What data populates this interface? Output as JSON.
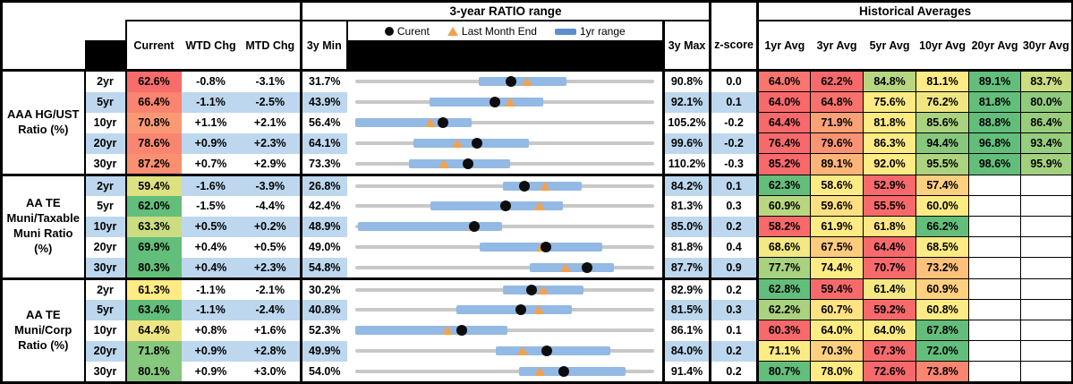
{
  "meta": {
    "ratio_range_title": "3-year RATIO range",
    "historical_title": "Historical Averages"
  },
  "columns": {
    "current": "Current",
    "wtd": "WTD Chg",
    "mtd": "MTD Chg",
    "min3y": "3y Min",
    "max3y": "3y Max",
    "zscore": "z-score",
    "avgs": [
      "1yr Avg",
      "3yr Avg",
      "5yr Avg",
      "10yr Avg",
      "20yr Avg",
      "30yr Avg"
    ]
  },
  "legend": {
    "current": "Curent",
    "last_month": "Last Month End",
    "range": "1yr range"
  },
  "colors": {
    "scale_min": "#F8696B",
    "scale_mid": "#FFEB84",
    "scale_max": "#63BE7B",
    "zebra": "#BDD7EE",
    "range_bar": "#93B9E5",
    "legend_bar": "#5D8FCE",
    "track": "#C8C8C8",
    "dot": "#0d0d0d",
    "triangle": "#F2A14F"
  },
  "groups": [
    {
      "label": "AAA HG/UST\nRatio (%)",
      "rows": [
        {
          "term": "2yr",
          "current": 62.6,
          "wtd": "-0.8%",
          "mtd": "-3.1%",
          "min": 31.7,
          "max": 90.8,
          "z": "0.0",
          "avgs": [
            64.0,
            62.2,
            84.8,
            81.1,
            89.1,
            83.7
          ],
          "range1yr": [
            56.2,
            73.4
          ],
          "last_month": 65.7
        },
        {
          "term": "5yr",
          "current": 66.4,
          "wtd": "-1.1%",
          "mtd": "-2.5%",
          "min": 43.9,
          "max": 92.1,
          "z": "0.1",
          "avgs": [
            64.0,
            64.8,
            75.6,
            76.2,
            81.8,
            80.0
          ],
          "range1yr": [
            56.0,
            74.3
          ],
          "last_month": 68.9
        },
        {
          "term": "10yr",
          "current": 70.8,
          "wtd": "+1.1%",
          "mtd": "+2.1%",
          "min": 56.4,
          "max": 105.2,
          "z": "-0.2",
          "avgs": [
            64.4,
            71.9,
            81.8,
            85.6,
            88.8,
            86.4
          ],
          "range1yr": [
            56.4,
            75.5
          ],
          "last_month": 68.7
        },
        {
          "term": "20yr",
          "current": 78.6,
          "wtd": "+0.9%",
          "mtd": "+2.3%",
          "min": 64.1,
          "max": 99.6,
          "z": "-0.2",
          "avgs": [
            76.4,
            79.6,
            86.3,
            94.4,
            96.8,
            93.4
          ],
          "range1yr": [
            71.1,
            84.7
          ],
          "last_month": 76.3
        },
        {
          "term": "30yr",
          "current": 87.2,
          "wtd": "+0.7%",
          "mtd": "+2.9%",
          "min": 73.3,
          "max": 110.2,
          "z": "-0.3",
          "avgs": [
            85.2,
            89.1,
            92.0,
            95.5,
            98.6,
            95.9
          ],
          "range1yr": [
            80.0,
            92.4
          ],
          "last_month": 84.3
        }
      ]
    },
    {
      "label": "AA TE\nMuni/Taxable\nMuni Ratio\n(%)",
      "rows": [
        {
          "term": "2yr",
          "current": 59.4,
          "wtd": "-1.6%",
          "mtd": "-3.9%",
          "min": 26.8,
          "max": 84.2,
          "z": "0.1",
          "avgs": [
            62.3,
            58.6,
            52.9,
            57.4,
            null,
            null
          ],
          "range1yr": [
            55.2,
            70.3
          ],
          "last_month": 63.3
        },
        {
          "term": "5yr",
          "current": 62.0,
          "wtd": "-1.5%",
          "mtd": "-4.4%",
          "min": 42.4,
          "max": 81.3,
          "z": "0.3",
          "avgs": [
            60.9,
            59.6,
            55.5,
            60.0,
            null,
            null
          ],
          "range1yr": [
            52.2,
            69.4
          ],
          "last_month": 66.4
        },
        {
          "term": "10yr",
          "current": 63.3,
          "wtd": "+0.5%",
          "mtd": "+0.2%",
          "min": 48.9,
          "max": 85.0,
          "z": "0.2",
          "avgs": [
            58.2,
            61.9,
            61.8,
            66.2,
            null,
            null
          ],
          "range1yr": [
            49.3,
            66.6
          ],
          "last_month": 63.1
        },
        {
          "term": "20yr",
          "current": 69.9,
          "wtd": "+0.4%",
          "mtd": "+0.5%",
          "min": 49.0,
          "max": 81.8,
          "z": "0.4",
          "avgs": [
            68.6,
            67.5,
            64.4,
            68.5,
            null,
            null
          ],
          "range1yr": [
            62.7,
            76.1
          ],
          "last_month": 69.4
        },
        {
          "term": "30yr",
          "current": 80.3,
          "wtd": "+0.4%",
          "mtd": "+2.3%",
          "min": 54.8,
          "max": 87.7,
          "z": "0.9",
          "avgs": [
            77.7,
            74.4,
            70.7,
            73.2,
            null,
            null
          ],
          "range1yr": [
            74.0,
            83.3
          ],
          "last_month": 78.0
        }
      ]
    },
    {
      "label": "AA TE\nMuni/Corp\nRatio (%)",
      "rows": [
        {
          "term": "2yr",
          "current": 61.3,
          "wtd": "-1.1%",
          "mtd": "-2.1%",
          "min": 30.2,
          "max": 82.9,
          "z": "0.2",
          "avgs": [
            62.8,
            59.4,
            61.4,
            60.9,
            null,
            null
          ],
          "range1yr": [
            56.3,
            70.5
          ],
          "last_month": 63.4
        },
        {
          "term": "5yr",
          "current": 63.4,
          "wtd": "-1.1%",
          "mtd": "-2.4%",
          "min": 40.8,
          "max": 81.5,
          "z": "0.3",
          "avgs": [
            62.2,
            60.7,
            59.2,
            60.8,
            null,
            null
          ],
          "range1yr": [
            54.6,
            70.3
          ],
          "last_month": 65.8
        },
        {
          "term": "10yr",
          "current": 64.4,
          "wtd": "+0.8%",
          "mtd": "+1.6%",
          "min": 52.3,
          "max": 86.1,
          "z": "0.1",
          "avgs": [
            60.3,
            64.0,
            64.0,
            67.8,
            null,
            null
          ],
          "range1yr": [
            52.3,
            69.5
          ],
          "last_month": 62.8
        },
        {
          "term": "20yr",
          "current": 71.8,
          "wtd": "+0.9%",
          "mtd": "+2.8%",
          "min": 49.9,
          "max": 84.0,
          "z": "0.2",
          "avgs": [
            71.1,
            70.3,
            67.3,
            72.0,
            null,
            null
          ],
          "range1yr": [
            66.0,
            79.0
          ],
          "last_month": 69.0
        },
        {
          "term": "30yr",
          "current": 80.1,
          "wtd": "+0.9%",
          "mtd": "+3.0%",
          "min": 54.0,
          "max": 91.4,
          "z": "0.2",
          "avgs": [
            80.7,
            78.0,
            72.6,
            73.8,
            null,
            null
          ],
          "range1yr": [
            74.5,
            87.8
          ],
          "last_month": 77.1
        }
      ]
    }
  ],
  "chart_data": {
    "type": "table",
    "title": "Muni ratio dashboard with embedded 3-year RATIO range bullet chart",
    "embedded_chart": {
      "type": "range-bullet",
      "title": "3-year RATIO range",
      "legend": [
        "Curent",
        "Last Month End",
        "1yr range"
      ],
      "x_domain_per_row": [
        "3y Min",
        "3y Max"
      ]
    },
    "row_fields": [
      "group",
      "term",
      "current",
      "wtd_chg",
      "mtd_chg",
      "min_3y",
      "max_3y",
      "z_score",
      "avg_1yr",
      "avg_3yr",
      "avg_5yr",
      "avg_10yr",
      "avg_20yr",
      "avg_30yr",
      "range_1yr_lo",
      "range_1yr_hi",
      "last_month_end"
    ],
    "rows": [
      [
        "AAA HG/UST Ratio (%)",
        "2yr",
        62.6,
        "-0.8%",
        "-3.1%",
        31.7,
        90.8,
        0.0,
        64.0,
        62.2,
        84.8,
        81.1,
        89.1,
        83.7,
        56.2,
        73.4,
        65.7
      ],
      [
        "AAA HG/UST Ratio (%)",
        "5yr",
        66.4,
        "-1.1%",
        "-2.5%",
        43.9,
        92.1,
        0.1,
        64.0,
        64.8,
        75.6,
        76.2,
        81.8,
        80.0,
        56.0,
        74.3,
        68.9
      ],
      [
        "AAA HG/UST Ratio (%)",
        "10yr",
        70.8,
        "+1.1%",
        "+2.1%",
        56.4,
        105.2,
        -0.2,
        64.4,
        71.9,
        81.8,
        85.6,
        88.8,
        86.4,
        56.4,
        75.5,
        68.7
      ],
      [
        "AAA HG/UST Ratio (%)",
        "20yr",
        78.6,
        "+0.9%",
        "+2.3%",
        64.1,
        99.6,
        -0.2,
        76.4,
        79.6,
        86.3,
        94.4,
        96.8,
        93.4,
        71.1,
        84.7,
        76.3
      ],
      [
        "AAA HG/UST Ratio (%)",
        "30yr",
        87.2,
        "+0.7%",
        "+2.9%",
        73.3,
        110.2,
        -0.3,
        85.2,
        89.1,
        92.0,
        95.5,
        98.6,
        95.9,
        80.0,
        92.4,
        84.3
      ],
      [
        "AA TE Muni/Taxable Muni Ratio (%)",
        "2yr",
        59.4,
        "-1.6%",
        "-3.9%",
        26.8,
        84.2,
        0.1,
        62.3,
        58.6,
        52.9,
        57.4,
        null,
        null,
        55.2,
        70.3,
        63.3
      ],
      [
        "AA TE Muni/Taxable Muni Ratio (%)",
        "5yr",
        62.0,
        "-1.5%",
        "-4.4%",
        42.4,
        81.3,
        0.3,
        60.9,
        59.6,
        55.5,
        60.0,
        null,
        null,
        52.2,
        69.4,
        66.4
      ],
      [
        "AA TE Muni/Taxable Muni Ratio (%)",
        "10yr",
        63.3,
        "+0.5%",
        "+0.2%",
        48.9,
        85.0,
        0.2,
        58.2,
        61.9,
        61.8,
        66.2,
        null,
        null,
        49.3,
        66.6,
        63.1
      ],
      [
        "AA TE Muni/Taxable Muni Ratio (%)",
        "20yr",
        69.9,
        "+0.4%",
        "+0.5%",
        49.0,
        81.8,
        0.4,
        68.6,
        67.5,
        64.4,
        68.5,
        null,
        null,
        62.7,
        76.1,
        69.4
      ],
      [
        "AA TE Muni/Taxable Muni Ratio (%)",
        "30yr",
        80.3,
        "+0.4%",
        "+2.3%",
        54.8,
        87.7,
        0.9,
        77.7,
        74.4,
        70.7,
        73.2,
        null,
        null,
        74.0,
        83.3,
        78.0
      ],
      [
        "AA TE Muni/Corp Ratio (%)",
        "2yr",
        61.3,
        "-1.1%",
        "-2.1%",
        30.2,
        82.9,
        0.2,
        62.8,
        59.4,
        61.4,
        60.9,
        null,
        null,
        56.3,
        70.5,
        63.4
      ],
      [
        "AA TE Muni/Corp Ratio (%)",
        "5yr",
        63.4,
        "-1.1%",
        "-2.4%",
        40.8,
        81.5,
        0.3,
        62.2,
        60.7,
        59.2,
        60.8,
        null,
        null,
        54.6,
        70.3,
        65.8
      ],
      [
        "AA TE Muni/Corp Ratio (%)",
        "10yr",
        64.4,
        "+0.8%",
        "+1.6%",
        52.3,
        86.1,
        0.1,
        60.3,
        64.0,
        64.0,
        67.8,
        null,
        null,
        52.3,
        69.5,
        62.8
      ],
      [
        "AA TE Muni/Corp Ratio (%)",
        "20yr",
        71.8,
        "+0.9%",
        "+2.8%",
        49.9,
        84.0,
        0.2,
        71.1,
        70.3,
        67.3,
        72.0,
        null,
        null,
        66.0,
        79.0,
        69.0
      ],
      [
        "AA TE Muni/Corp Ratio (%)",
        "30yr",
        80.1,
        "+0.9%",
        "+3.0%",
        54.0,
        91.4,
        0.2,
        80.7,
        78.0,
        72.6,
        73.8,
        null,
        null,
        74.5,
        87.8,
        77.1
      ]
    ]
  }
}
